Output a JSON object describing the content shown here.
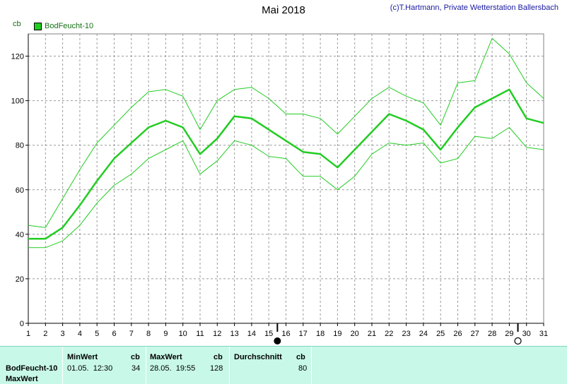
{
  "header": {
    "credit": "(c)T.Hartmann, Private Wetterstation Ballersbach",
    "title": "Mai 2018",
    "unit": "cb",
    "legend": "BodFeucht-10"
  },
  "chart_data": {
    "type": "line",
    "title": "Mai 2018",
    "ylabel": "cb",
    "xlabel": "",
    "ylim": [
      0,
      130
    ],
    "yticks": [
      0,
      20,
      40,
      60,
      80,
      100,
      120
    ],
    "x": [
      1,
      2,
      3,
      4,
      5,
      6,
      7,
      8,
      9,
      10,
      11,
      12,
      13,
      14,
      15,
      16,
      17,
      18,
      19,
      20,
      21,
      22,
      23,
      24,
      25,
      26,
      27,
      28,
      29,
      30,
      31
    ],
    "grid": true,
    "series": [
      {
        "name": "BodFeucht-10",
        "role": "avg",
        "color": "#22cc22",
        "values": [
          38,
          38,
          43,
          53,
          64,
          74,
          81,
          88,
          91,
          88,
          76,
          83,
          93,
          92,
          87,
          82,
          77,
          76,
          70,
          78,
          86,
          94,
          91,
          87,
          78,
          88,
          97,
          101,
          105,
          92,
          90
        ]
      },
      {
        "name": "",
        "role": "max",
        "color": "#22cc22",
        "values": [
          44,
          43,
          56,
          69,
          81,
          89,
          97,
          104,
          105,
          102,
          87,
          100,
          105,
          106,
          101,
          94,
          94,
          92,
          85,
          93,
          101,
          106,
          102,
          99,
          89,
          108,
          109,
          128,
          121,
          108,
          101
        ]
      },
      {
        "name": "",
        "role": "min",
        "color": "#22cc22",
        "values": [
          34,
          34,
          37,
          44,
          54,
          62,
          67,
          74,
          78,
          82,
          67,
          73,
          82,
          80,
          75,
          74,
          66,
          66,
          60,
          66,
          76,
          81,
          80,
          81,
          72,
          74,
          84,
          83,
          88,
          79,
          78
        ]
      }
    ],
    "markers": [
      {
        "x": 15.5,
        "symbol": "full-moon-dot"
      },
      {
        "x": 29.5,
        "symbol": "new-moon-circle"
      }
    ]
  },
  "table": {
    "row_label_1": "BodFeucht-10",
    "row_label_2": "MaxWert",
    "min_header": "MinWert",
    "min_unit": "cb",
    "min_time": "01.05.  12:30",
    "min_value": "34",
    "max_header": "MaxWert",
    "max_unit": "cb",
    "max_time": "28.05.  19:55",
    "max_value": "128",
    "avg_header": "Durchschnitt",
    "avg_unit": "cb",
    "avg_value": "80"
  }
}
